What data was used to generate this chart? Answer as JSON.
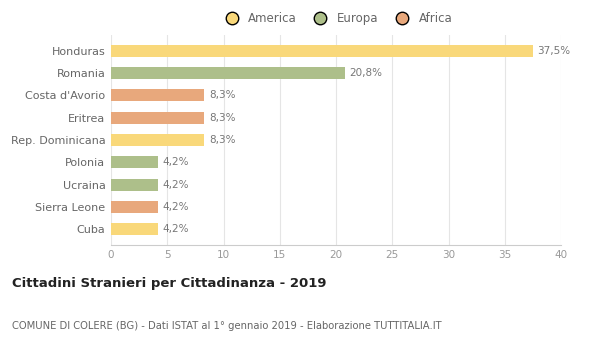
{
  "categories": [
    "Honduras",
    "Romania",
    "Costa d'Avorio",
    "Eritrea",
    "Rep. Dominicana",
    "Polonia",
    "Ucraina",
    "Sierra Leone",
    "Cuba"
  ],
  "values": [
    37.5,
    20.8,
    8.3,
    8.3,
    8.3,
    4.2,
    4.2,
    4.2,
    4.2
  ],
  "labels": [
    "37,5%",
    "20,8%",
    "8,3%",
    "8,3%",
    "8,3%",
    "4,2%",
    "4,2%",
    "4,2%",
    "4,2%"
  ],
  "colors": [
    "#F9D87A",
    "#ADBF8A",
    "#E8A87C",
    "#E8A87C",
    "#F9D87A",
    "#ADBF8A",
    "#ADBF8A",
    "#E8A87C",
    "#F9D87A"
  ],
  "legend_labels": [
    "America",
    "Europa",
    "Africa"
  ],
  "legend_colors": [
    "#F9D87A",
    "#ADBF8A",
    "#E8A87C"
  ],
  "title": "Cittadini Stranieri per Cittadinanza - 2019",
  "subtitle": "COMUNE DI COLERE (BG) - Dati ISTAT al 1° gennaio 2019 - Elaborazione TUTTITALIA.IT",
  "xlim": [
    0,
    40
  ],
  "xticks": [
    0,
    5,
    10,
    15,
    20,
    25,
    30,
    35,
    40
  ],
  "background_color": "#ffffff",
  "grid_color": "#e5e5e5",
  "label_color": "#777777",
  "bar_height": 0.55
}
